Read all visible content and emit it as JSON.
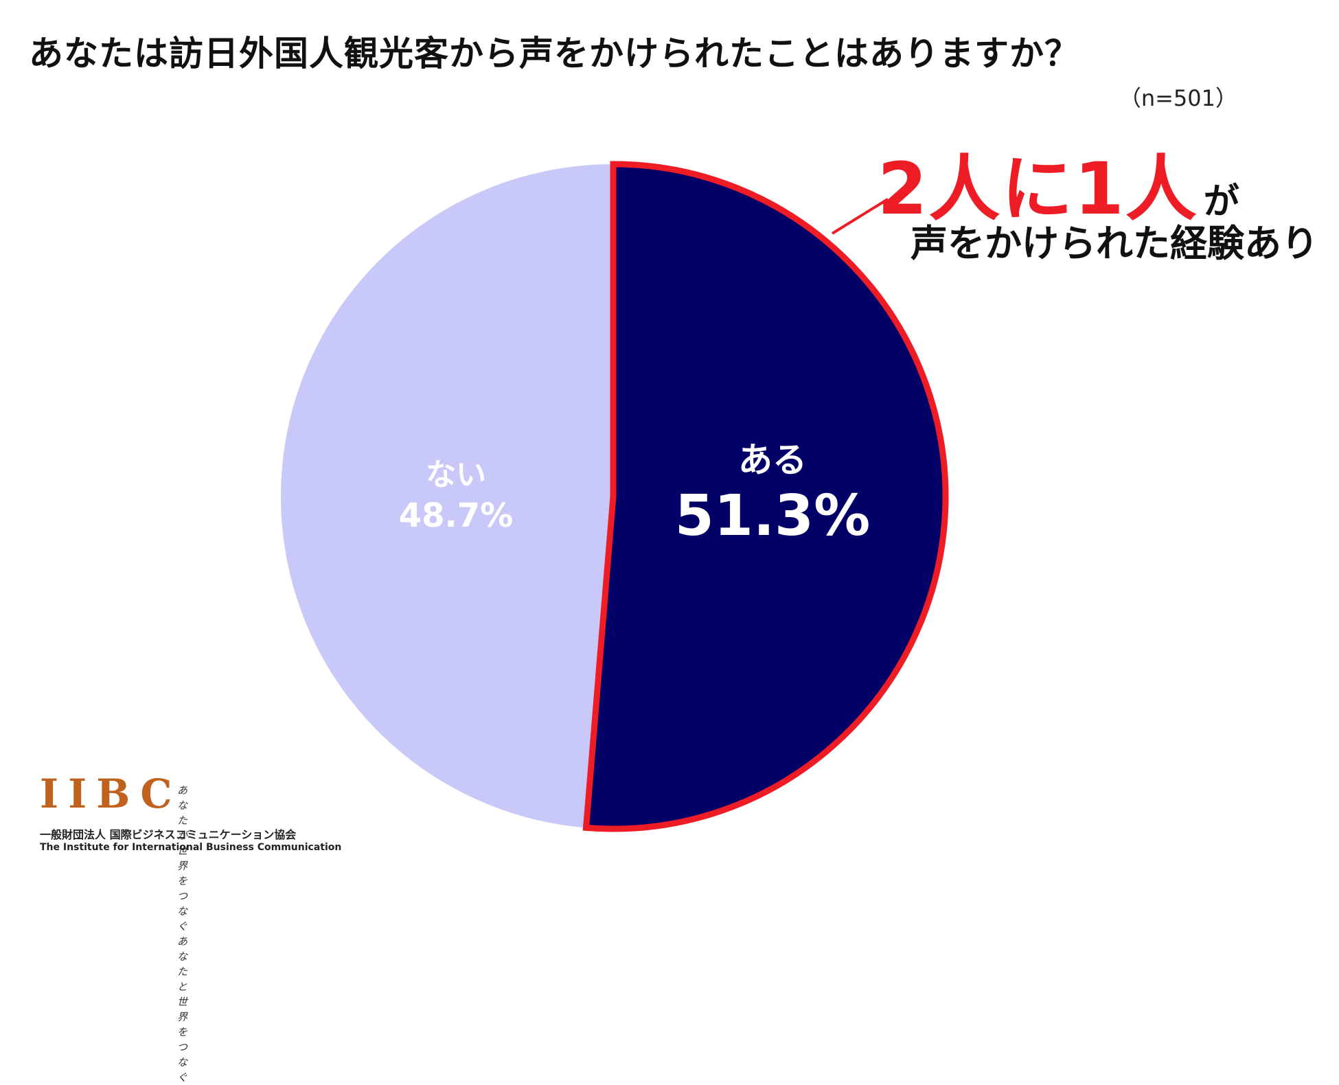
{
  "title": "あなたは訪日外国人観光客から声をかけられたことはありますか？",
  "sample_size": "（n=501）",
  "chart_data": {
    "type": "pie",
    "title": "あなたは訪日外国人観光客から声をかけられたことはありますか？",
    "slices": [
      {
        "label": "ある",
        "value": 51.3,
        "value_label": "51.3%",
        "color": "#000066",
        "highlight_color": "#ee1c25"
      },
      {
        "label": "ない",
        "value": 48.7,
        "value_label": "48.7%",
        "color": "#c9c9f9"
      }
    ],
    "label_colors": {
      "ある": "#ffffff",
      "ない": "#ffffff"
    }
  },
  "callout": {
    "headline": "2人に1人",
    "headline_suffix": "が",
    "subline": "声をかけられた経験あり",
    "color": "#ee1c25"
  },
  "logo": {
    "mark": "IIBC",
    "tagline_1": "あなたが世界をつなぐ",
    "tagline_2": "あなたと世界をつなぐ",
    "org_ja": "一般財団法人 国際ビジネスコミュニケーション協会",
    "org_en": "The Institute for International Business Communication"
  }
}
